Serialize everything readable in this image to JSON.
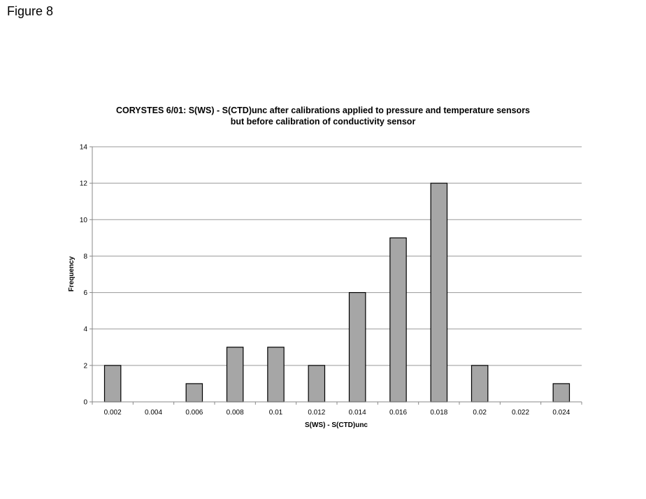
{
  "figure_label": "Figure 8",
  "chart_data": {
    "type": "bar",
    "title_lines": [
      "CORYSTES 6/01: S(WS) - S(CTD)unc after calibrations applied to pressure and temperature sensors",
      "but before calibration of conductivity sensor"
    ],
    "xlabel": "S(WS) - S(CTD)unc",
    "ylabel": "Frequency",
    "categories": [
      "0.002",
      "0.004",
      "0.006",
      "0.008",
      "0.01",
      "0.012",
      "0.014",
      "0.016",
      "0.018",
      "0.02",
      "0.022",
      "0.024"
    ],
    "values": [
      2,
      0,
      1,
      3,
      3,
      2,
      6,
      9,
      12,
      2,
      0,
      1
    ],
    "ylim": [
      0,
      14
    ],
    "yticks": [
      0,
      2,
      4,
      6,
      8,
      10,
      12,
      14
    ],
    "grid": true,
    "legend": "none",
    "colors": {
      "bar_fill": "#a6a6a6",
      "bar_stroke": "#000000",
      "grid": "#999999",
      "axis": "#888888"
    }
  }
}
